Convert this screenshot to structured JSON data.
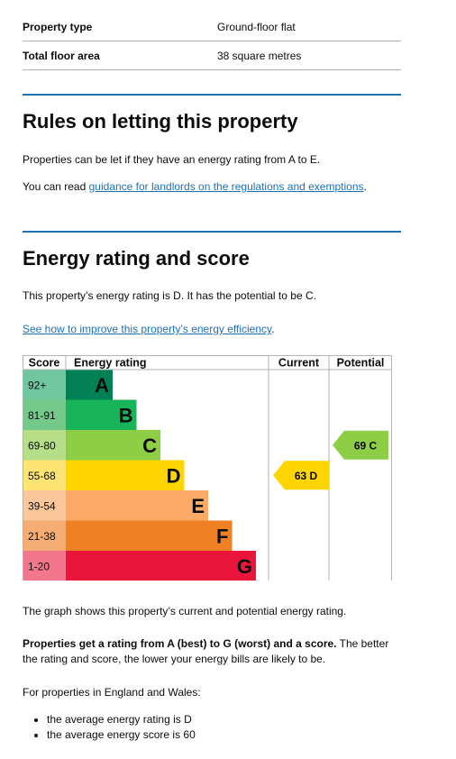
{
  "summary": {
    "rows": [
      {
        "key": "Property type",
        "value": "Ground-floor flat"
      },
      {
        "key": "Total floor area",
        "value": "38 square metres"
      }
    ]
  },
  "rules": {
    "heading": "Rules on letting this property",
    "para1": "Properties can be let if they have an energy rating from A to E.",
    "para2_prefix": "You can read ",
    "para2_link": "guidance for landlords on the regulations and exemptions",
    "para2_suffix": "."
  },
  "energy": {
    "heading": "Energy rating and score",
    "para1": "This property’s energy rating is D. It has the potential to be C.",
    "link": "See how to improve this property’s energy efficiency",
    "link_suffix": "."
  },
  "chart_data": {
    "type": "table",
    "headers": {
      "score": "Score",
      "rating": "Energy rating",
      "current": "Current",
      "potential": "Potential"
    },
    "bands": [
      {
        "score": "92+",
        "letter": "A",
        "color": "#008054",
        "score_bg": "#70c69d"
      },
      {
        "score": "81-91",
        "letter": "B",
        "color": "#19b459",
        "score_bg": "#74c98a"
      },
      {
        "score": "69-80",
        "letter": "C",
        "color": "#8dce46",
        "score_bg": "#b6de88"
      },
      {
        "score": "55-68",
        "letter": "D",
        "color": "#ffd500",
        "score_bg": "#fee472"
      },
      {
        "score": "39-54",
        "letter": "E",
        "color": "#fcaa65",
        "score_bg": "#fbc79b"
      },
      {
        "score": "21-38",
        "letter": "F",
        "color": "#ef8023",
        "score_bg": "#f5ad73"
      },
      {
        "score": "1-20",
        "letter": "G",
        "color": "#e9153b",
        "score_bg": "#f2778c"
      }
    ],
    "current": {
      "score": 63,
      "letter": "D",
      "label": "63  D",
      "color": "#ffd500"
    },
    "potential": {
      "score": 69,
      "letter": "C",
      "label": "69  C",
      "color": "#8dce46"
    }
  },
  "footer": {
    "graph_note": "The graph shows this property’s current and potential energy rating.",
    "bold_text": "Properties get a rating from A (best) to G (worst) and a score.",
    "rest_text": " The better the rating and score, the lower your energy bills are likely to be.",
    "intro": "For properties in England and Wales:",
    "bullets": [
      "the average energy rating is D",
      "the average energy score is 60"
    ]
  }
}
